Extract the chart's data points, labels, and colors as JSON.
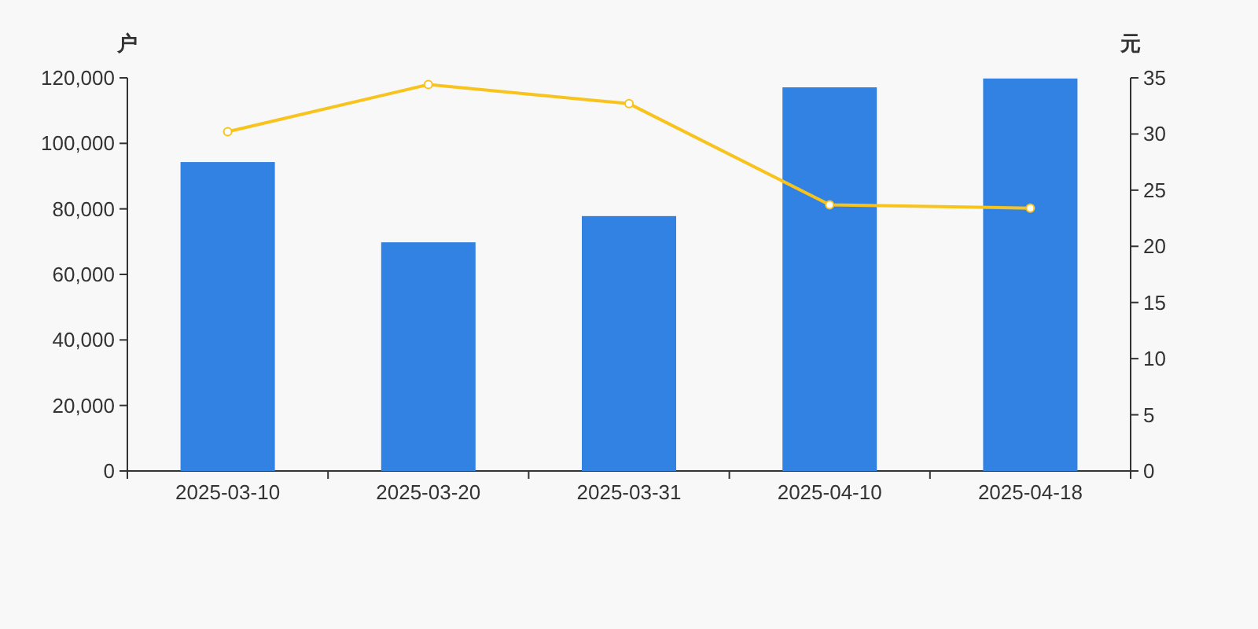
{
  "chart_data": {
    "type": "bar",
    "categories": [
      "2025-03-10",
      "2025-03-20",
      "2025-03-31",
      "2025-04-10",
      "2025-04-18"
    ],
    "ylabel": "户",
    "y2label": "元",
    "ylim": [
      0,
      120000
    ],
    "yticks": [
      0,
      {
        "value": 20000,
        "label": "20,000"
      },
      {
        "value": 40000,
        "label": "40,000"
      },
      {
        "value": 60000,
        "label": "60,000"
      },
      {
        "value": 80000,
        "label": "80,000"
      },
      {
        "value": 100000,
        "label": "100,000"
      },
      {
        "value": 120000,
        "label": "120,000"
      }
    ],
    "y2lim": [
      0,
      35
    ],
    "y2ticks": [
      0,
      5,
      10,
      15,
      20,
      25,
      30,
      35
    ],
    "series": [
      {
        "color": "#3282e3",
        "values": [
          94300,
          69800,
          77800,
          117100,
          119800
        ]
      },
      {
        "type": "line",
        "axis": "y2",
        "color": "#f8c31c",
        "marker": "circle",
        "values": [
          30.2,
          34.4,
          32.7,
          23.7,
          23.4
        ]
      }
    ]
  }
}
